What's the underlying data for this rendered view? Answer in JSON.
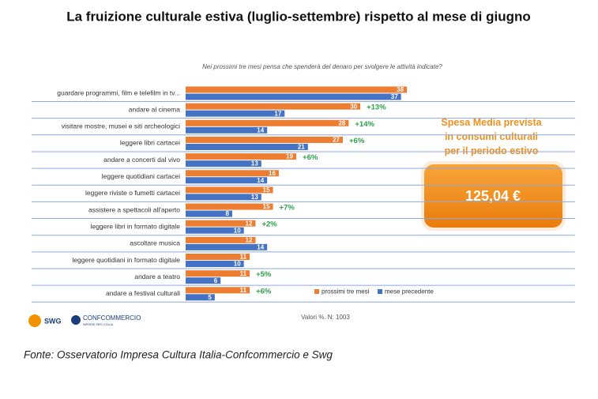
{
  "chart_data": {
    "type": "bar",
    "orientation": "horizontal",
    "title": "La fruizione culturale estiva (luglio-settembre) rispetto al mese di giugno",
    "subtitle": "Nei prossimi tre mesi pensa che spenderà del denaro per svolgere le attività indicate?",
    "categories": [
      "guardare programmi, film e telefilm in tv...",
      "andare al cinema",
      "visitare mostre, musei e siti archeologici",
      "leggere libri cartacei",
      "andare a concerti dal vivo",
      "leggere quotidiani cartacei",
      "leggere riviste o fumetti cartacei",
      "assistere a spettacoli all'aperto",
      "leggere libri in formato digitale",
      "ascoltare musica",
      "leggere quotidiani in formato digitale",
      "andare a teatro",
      "andare a festival culturali"
    ],
    "series": [
      {
        "name": "prossimi tre mesi",
        "color": "#ed7d31",
        "values": [
          38,
          30,
          28,
          27,
          19,
          16,
          15,
          15,
          12,
          12,
          11,
          11,
          11
        ]
      },
      {
        "name": "mese precedente",
        "color": "#4472c4",
        "values": [
          37,
          17,
          14,
          21,
          13,
          14,
          13,
          8,
          10,
          14,
          10,
          6,
          5
        ]
      }
    ],
    "growth_labels": [
      null,
      "+13%",
      "+14%",
      "+6%",
      "+6%",
      null,
      null,
      "+7%",
      "+2%",
      null,
      null,
      "+5%",
      "+6%"
    ],
    "note": "Valori %. N: 1003",
    "callout": {
      "text": "Spesa Media prevista in consumi culturali per il periodo estivo",
      "value": "125,04 €"
    },
    "logos": [
      "SWG",
      "CONFCOMMERCIO",
      "IMPRESE PER L'ITALIA"
    ],
    "source": "Fonte: Osservatorio Impresa Cultura Italia-Confcommercio e Swg"
  }
}
